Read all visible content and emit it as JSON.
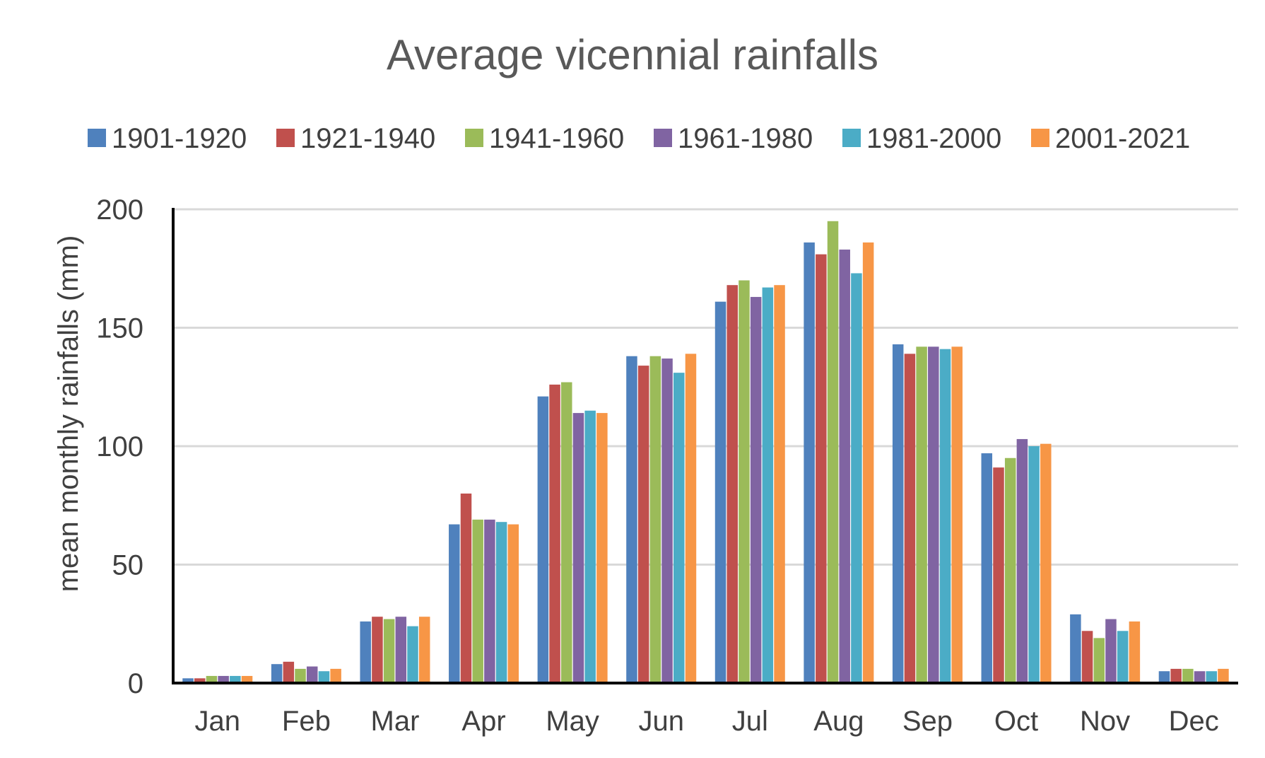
{
  "chart_data": {
    "type": "bar",
    "title": "Average vicennial rainfalls",
    "xlabel": "",
    "ylabel": "mean monthly rainfalls (mm)",
    "ylim": [
      0,
      200
    ],
    "yticks": [
      0,
      50,
      100,
      150,
      200
    ],
    "grid": "horizontal",
    "legend_position": "top",
    "categories": [
      "Jan",
      "Feb",
      "Mar",
      "Apr",
      "May",
      "Jun",
      "Jul",
      "Aug",
      "Sep",
      "Oct",
      "Nov",
      "Dec"
    ],
    "series": [
      {
        "name": "1901-1920",
        "color": "#4F81BD",
        "values": [
          2,
          8,
          26,
          67,
          121,
          138,
          161,
          186,
          143,
          97,
          29,
          5
        ]
      },
      {
        "name": "1921-1940",
        "color": "#C0504D",
        "values": [
          2,
          9,
          28,
          80,
          126,
          134,
          168,
          181,
          139,
          91,
          22,
          6
        ]
      },
      {
        "name": "1941-1960",
        "color": "#9BBB59",
        "values": [
          3,
          6,
          27,
          69,
          127,
          138,
          170,
          195,
          142,
          95,
          19,
          6
        ]
      },
      {
        "name": "1961-1980",
        "color": "#8064A2",
        "values": [
          3,
          7,
          28,
          69,
          114,
          137,
          163,
          183,
          142,
          103,
          27,
          5
        ]
      },
      {
        "name": "1981-2000",
        "color": "#4BACC6",
        "values": [
          3,
          5,
          24,
          68,
          115,
          131,
          167,
          173,
          141,
          100,
          22,
          5
        ]
      },
      {
        "name": "2001-2021",
        "color": "#F79646",
        "values": [
          3,
          6,
          28,
          67,
          114,
          139,
          168,
          186,
          142,
          101,
          26,
          6
        ]
      }
    ]
  }
}
